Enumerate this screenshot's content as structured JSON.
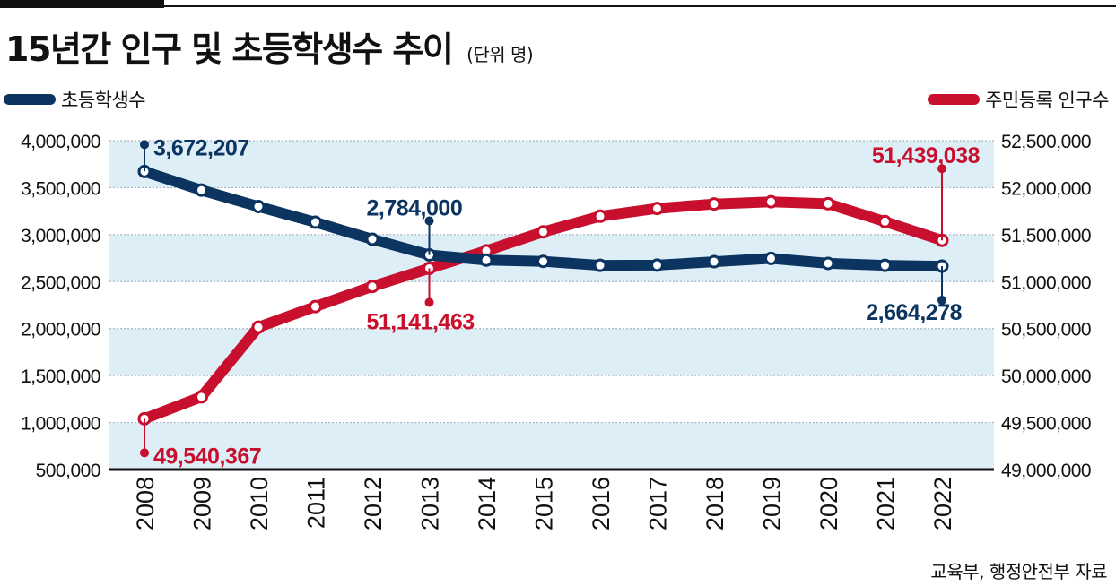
{
  "header": {
    "title": "15년간 인구 및 초등학생수 추이",
    "unit": "(단위 명)"
  },
  "source": "교육부, 행정안전부 자료",
  "colors": {
    "students": "#0b3460",
    "population": "#c8102e",
    "band": "#deeef7",
    "grid": "#9aa7b3"
  },
  "chart_data": {
    "type": "line",
    "categories": [
      "2008",
      "2009",
      "2010",
      "2011",
      "2012",
      "2013",
      "2014",
      "2015",
      "2016",
      "2017",
      "2018",
      "2019",
      "2020",
      "2021",
      "2022"
    ],
    "left_axis": {
      "ylim": [
        500000,
        4000000
      ],
      "ticks": [
        "4,000,000",
        "3,500,000",
        "3,000,000",
        "2,500,000",
        "2,000,000",
        "1,500,000",
        "1,000,000",
        "500,000"
      ]
    },
    "right_axis": {
      "ylim": [
        49000000,
        52500000
      ],
      "ticks": [
        "52,500,000",
        "52,000,000",
        "51,500,000",
        "51,000,000",
        "50,500,000",
        "50,000,000",
        "49,500,000",
        "49,000,000"
      ]
    },
    "series": [
      {
        "name": "초등학생수",
        "axis": "left",
        "color": "#0b3460",
        "values": [
          3672207,
          3474000,
          3299000,
          3132000,
          2951000,
          2784000,
          2729000,
          2715000,
          2673000,
          2675000,
          2712000,
          2747000,
          2694000,
          2673000,
          2664278
        ]
      },
      {
        "name": "주민등록 인구수",
        "axis": "right",
        "color": "#c8102e",
        "values": [
          49540367,
          49773145,
          50515666,
          50734284,
          50948272,
          51141463,
          51327916,
          51529338,
          51696216,
          51778544,
          51826059,
          51849861,
          51829023,
          51638809,
          51439038
        ]
      }
    ],
    "annotations": [
      {
        "series": 0,
        "index": 0,
        "label": "3,672,207",
        "dir": "up"
      },
      {
        "series": 0,
        "index": 5,
        "label": "2,784,000",
        "dir": "up"
      },
      {
        "series": 0,
        "index": 14,
        "label": "2,664,278",
        "dir": "down"
      },
      {
        "series": 1,
        "index": 0,
        "label": "49,540,367",
        "dir": "down"
      },
      {
        "series": 1,
        "index": 5,
        "label": "51,141,463",
        "dir": "down"
      },
      {
        "series": 1,
        "index": 14,
        "label": "51,439,038",
        "dir": "up"
      }
    ],
    "grid": true,
    "legend": "top"
  }
}
